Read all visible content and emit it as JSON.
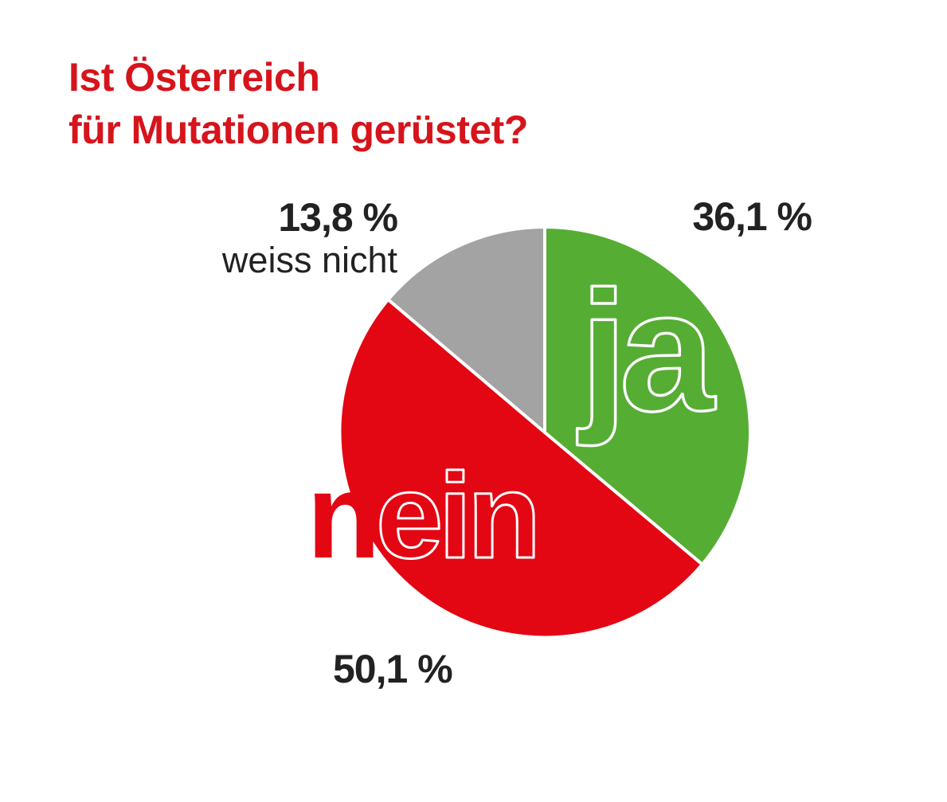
{
  "title_lines": [
    "Ist Österreich",
    "für Mutationen gerüstet?"
  ],
  "chart_data": {
    "type": "pie",
    "title": "Ist Österreich für Mutationen gerüstet?",
    "start_angle_deg": 0,
    "direction": "clockwise",
    "slices": [
      {
        "label": "ja",
        "value": 36.1,
        "value_label": "36,1 %",
        "color": "#56ad34"
      },
      {
        "label": "nein",
        "value": 50.1,
        "value_label": "50,1 %",
        "color": "#e30613"
      },
      {
        "label": "weiss nicht",
        "value": 13.8,
        "value_label": "13,8 %",
        "color": "#a3a3a3"
      }
    ]
  }
}
